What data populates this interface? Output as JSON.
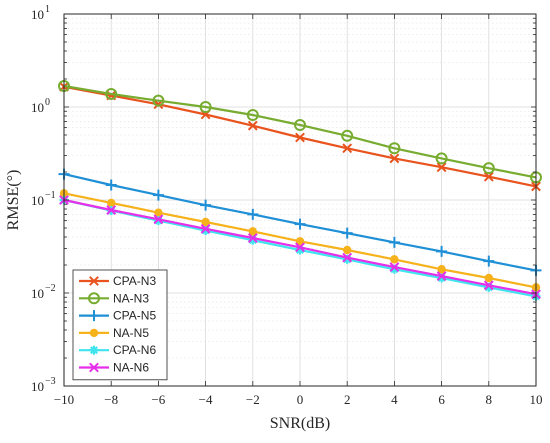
{
  "chart_data": {
    "type": "line",
    "title": "",
    "xlabel": "SNR(dB)",
    "ylabel": "RMSE(°)",
    "xlim": [
      -10,
      10
    ],
    "ylim": [
      0.001,
      10
    ],
    "yscale": "log",
    "grid": true,
    "legend_position": "bottom-left",
    "x": [
      -10,
      -8,
      -6,
      -4,
      -2,
      0,
      2,
      4,
      6,
      8,
      10
    ],
    "x_tick_labels": [
      "−10",
      "−8",
      "−6",
      "−4",
      "−2",
      "0",
      "2",
      "4",
      "6",
      "8",
      "10"
    ],
    "y_ticks": [
      {
        "value": 0.001,
        "base": "10",
        "exp": "-3"
      },
      {
        "value": 0.01,
        "base": "10",
        "exp": "-2"
      },
      {
        "value": 0.1,
        "base": "10",
        "exp": "-1"
      },
      {
        "value": 1,
        "base": "10",
        "exp": "0"
      },
      {
        "value": 10,
        "base": "10",
        "exp": "1"
      }
    ],
    "series": [
      {
        "name": "CPA-N3",
        "color": "#e8531e",
        "marker": "x",
        "values": [
          1.65,
          1.33,
          1.07,
          0.83,
          0.63,
          0.47,
          0.36,
          0.28,
          0.225,
          0.178,
          0.14
        ]
      },
      {
        "name": "NA-N3",
        "color": "#77ac30",
        "marker": "circle",
        "values": [
          1.68,
          1.38,
          1.17,
          1.0,
          0.82,
          0.64,
          0.49,
          0.36,
          0.28,
          0.22,
          0.175
        ]
      },
      {
        "name": "CPA-N5",
        "color": "#1f8fd6",
        "marker": "plus",
        "values": [
          0.19,
          0.145,
          0.113,
          0.088,
          0.07,
          0.055,
          0.044,
          0.035,
          0.028,
          0.022,
          0.0175
        ]
      },
      {
        "name": "NA-N5",
        "color": "#f5b21b",
        "marker": "dot",
        "values": [
          0.118,
          0.093,
          0.073,
          0.058,
          0.046,
          0.036,
          0.029,
          0.023,
          0.018,
          0.0145,
          0.0115
        ]
      },
      {
        "name": "CPA-N6",
        "color": "#3ee4ee",
        "marker": "asterisk",
        "values": [
          0.1,
          0.077,
          0.06,
          0.047,
          0.037,
          0.029,
          0.023,
          0.018,
          0.0145,
          0.0115,
          0.0092
        ]
      },
      {
        "name": "NA-N6",
        "color": "#e52fe8",
        "marker": "x",
        "values": [
          0.1,
          0.078,
          0.062,
          0.049,
          0.039,
          0.031,
          0.024,
          0.019,
          0.0152,
          0.0121,
          0.0097
        ]
      }
    ]
  }
}
